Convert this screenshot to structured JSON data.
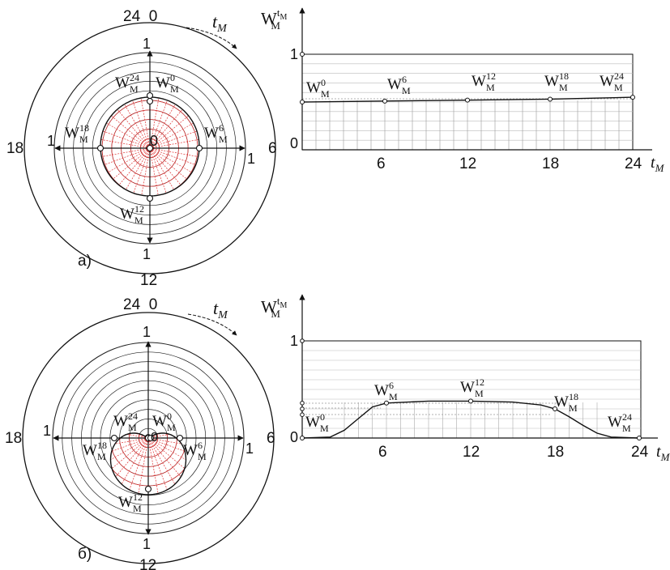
{
  "panel_a": {
    "label": "a)",
    "dial": {
      "top": "24  0",
      "right": "6",
      "bottom": "12",
      "left": "18",
      "time_symbol": "t",
      "time_sub": "M"
    },
    "axis": {
      "up": "1",
      "down": "1",
      "left": "1",
      "right": "1",
      "center": "0"
    },
    "points": {
      "w0": "0",
      "w6": "6",
      "w12": "12",
      "w18": "18",
      "w24": "24",
      "base": "W",
      "sub": "M"
    },
    "radii": {
      "r0": 0.6,
      "r6": 0.55,
      "r12": 0.56,
      "r18": 0.56,
      "r24": 0.6
    },
    "chart": {
      "ylabel_base": "W",
      "ylabel_sub": "M",
      "ylabel_sup": "t",
      "ytick_1": "1",
      "ytick_0": "0",
      "xticks": [
        "6",
        "12",
        "18",
        "24"
      ],
      "xlabel": "t",
      "xlabel_sub": "M"
    }
  },
  "panel_b": {
    "label": "б)",
    "dial": {
      "top": "24  0",
      "right": "6",
      "bottom": "12",
      "left": "18",
      "time_symbol": "t",
      "time_sub": "M"
    },
    "axis": {
      "up": "1",
      "down": "1",
      "left": "1",
      "right": "1",
      "center": "0"
    },
    "points": {
      "w0": "0",
      "w6": "6",
      "w12": "12",
      "w18": "18",
      "w24": "24",
      "base": "W",
      "sub": "M"
    },
    "chart": {
      "ylabel_base": "W",
      "ylabel_sub": "M",
      "ylabel_sup": "t",
      "ytick_1": "1",
      "ytick_0": "0",
      "xticks": [
        "6",
        "12",
        "18",
        "24"
      ],
      "xlabel": "t",
      "xlabel_sub": "M"
    }
  },
  "chart_data": [
    {
      "type": "line",
      "x": [
        0,
        6,
        12,
        18,
        24
      ],
      "values": [
        0.5,
        0.51,
        0.52,
        0.53,
        0.55
      ],
      "xlim": [
        0,
        24
      ],
      "ylim": [
        0,
        1
      ]
    },
    {
      "type": "line",
      "x": [
        0,
        2,
        3,
        4,
        5,
        6,
        9,
        12,
        15,
        17,
        18,
        19,
        20,
        21,
        22,
        24
      ],
      "values": [
        0,
        0.01,
        0.08,
        0.2,
        0.32,
        0.36,
        0.38,
        0.38,
        0.37,
        0.34,
        0.3,
        0.22,
        0.13,
        0.05,
        0.01,
        0
      ],
      "xlim": [
        0,
        24
      ],
      "ylim": [
        0,
        1
      ]
    }
  ]
}
